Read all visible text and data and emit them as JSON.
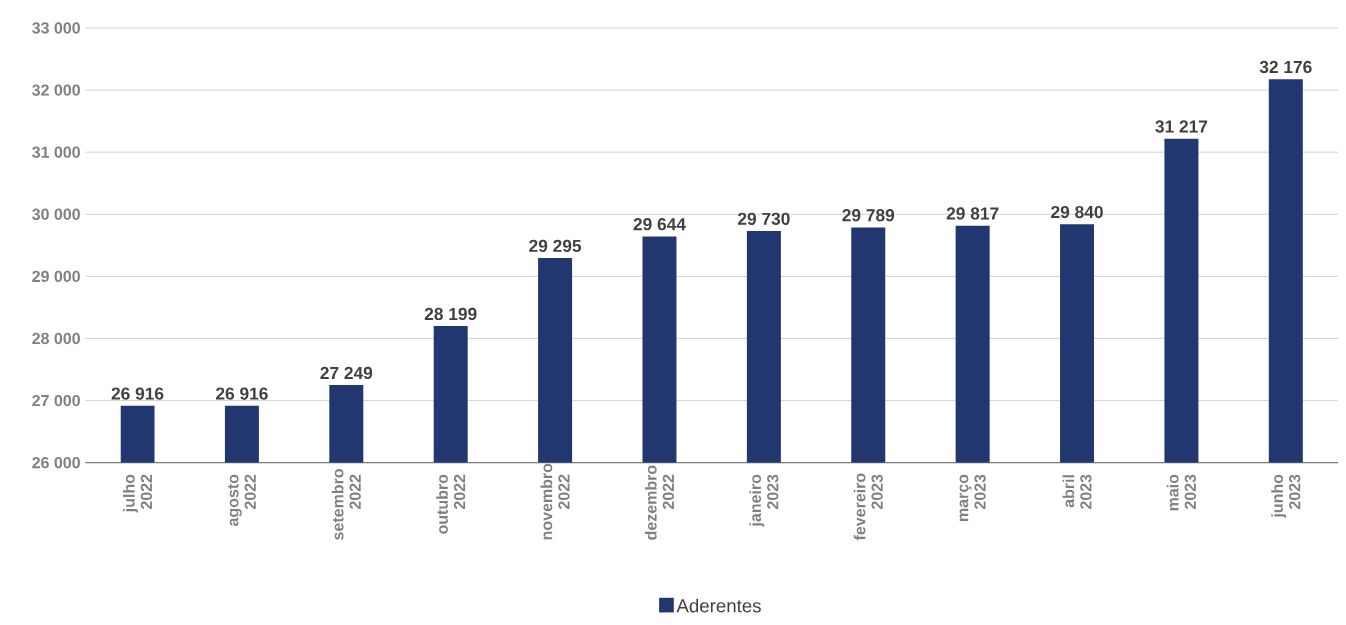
{
  "chart_data": {
    "type": "bar",
    "categories": [
      "julho 2022",
      "agosto 2022",
      "setembro 2022",
      "outubro 2022",
      "novembro 2022",
      "dezembro 2022",
      "janeiro 2023",
      "fevereiro 2023",
      "março 2023",
      "abril 2023",
      "maio 2023",
      "junho 2023"
    ],
    "series": [
      {
        "name": "Aderentes",
        "color": "#22376f",
        "values": [
          26916,
          26916,
          27249,
          28199,
          29295,
          29644,
          29730,
          29789,
          29817,
          29840,
          31217,
          32176
        ],
        "value_labels": [
          "26 916",
          "26 916",
          "27 249",
          "28 199",
          "29 295",
          "29 644",
          "29 730",
          "29 789",
          "29 817",
          "29 840",
          "31 217",
          "32 176"
        ]
      }
    ],
    "ylim": [
      26000,
      33000
    ],
    "yticks": [
      {
        "value": 26000,
        "label": "26 000"
      },
      {
        "value": 27000,
        "label": "27 000"
      },
      {
        "value": 28000,
        "label": "28 000"
      },
      {
        "value": 29000,
        "label": "29 000"
      },
      {
        "value": 30000,
        "label": "30 000"
      },
      {
        "value": 31000,
        "label": "31 000"
      },
      {
        "value": 32000,
        "label": "32 000"
      },
      {
        "value": 33000,
        "label": "33 000"
      }
    ],
    "grid": "y",
    "legend": "bottom"
  }
}
